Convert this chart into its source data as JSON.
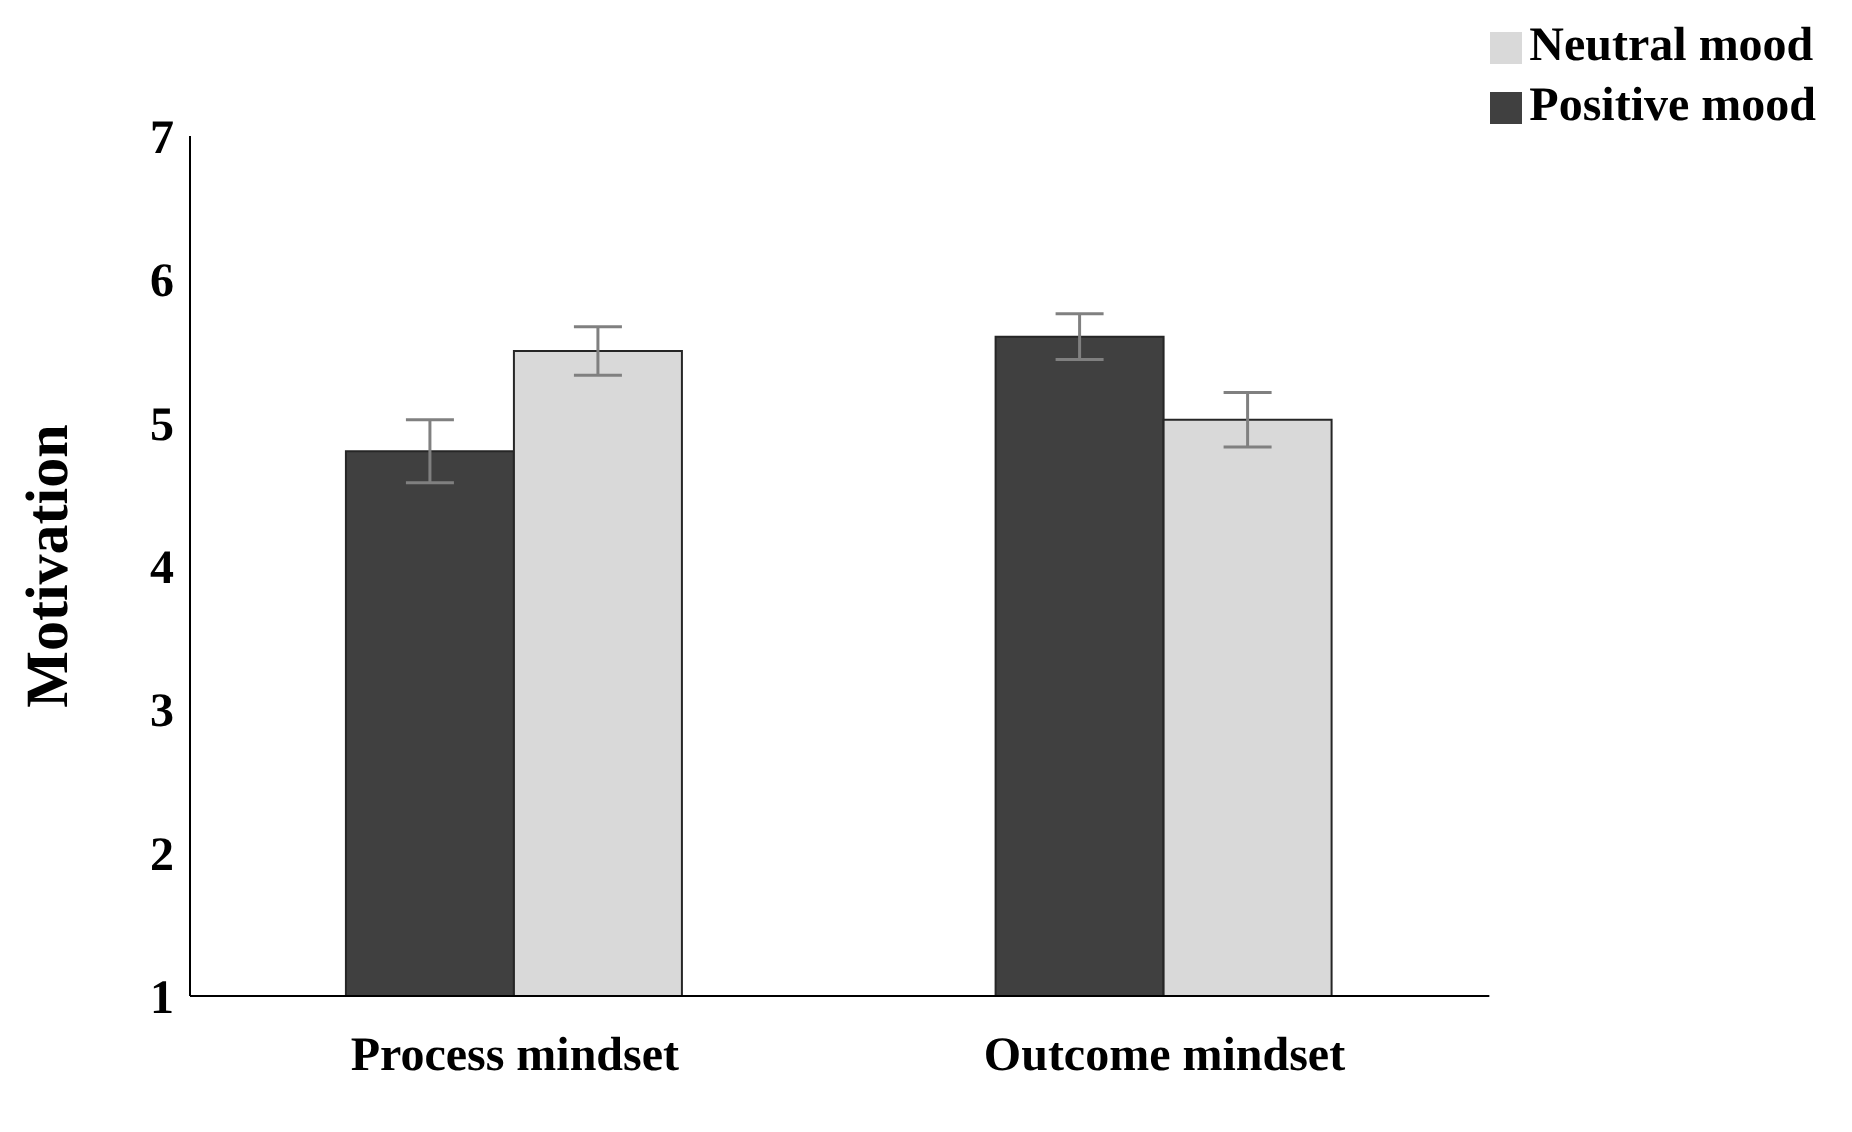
{
  "chart_data": {
    "type": "bar",
    "ylabel": "Motivation",
    "categories": [
      "Process mindset",
      "Outcome mindset"
    ],
    "series": [
      {
        "name": "Positive mood",
        "color": "#404040",
        "values": [
          4.8,
          5.6
        ],
        "errors": [
          0.22,
          0.16
        ]
      },
      {
        "name": "Neutral mood",
        "color": "#d9d9d9",
        "values": [
          5.5,
          5.02
        ],
        "errors": [
          0.17,
          0.19
        ]
      }
    ],
    "ylim": [
      1,
      7
    ],
    "yticks": [
      1,
      2,
      3,
      4,
      5,
      6,
      7
    ],
    "grid": false,
    "legend": "top right"
  }
}
